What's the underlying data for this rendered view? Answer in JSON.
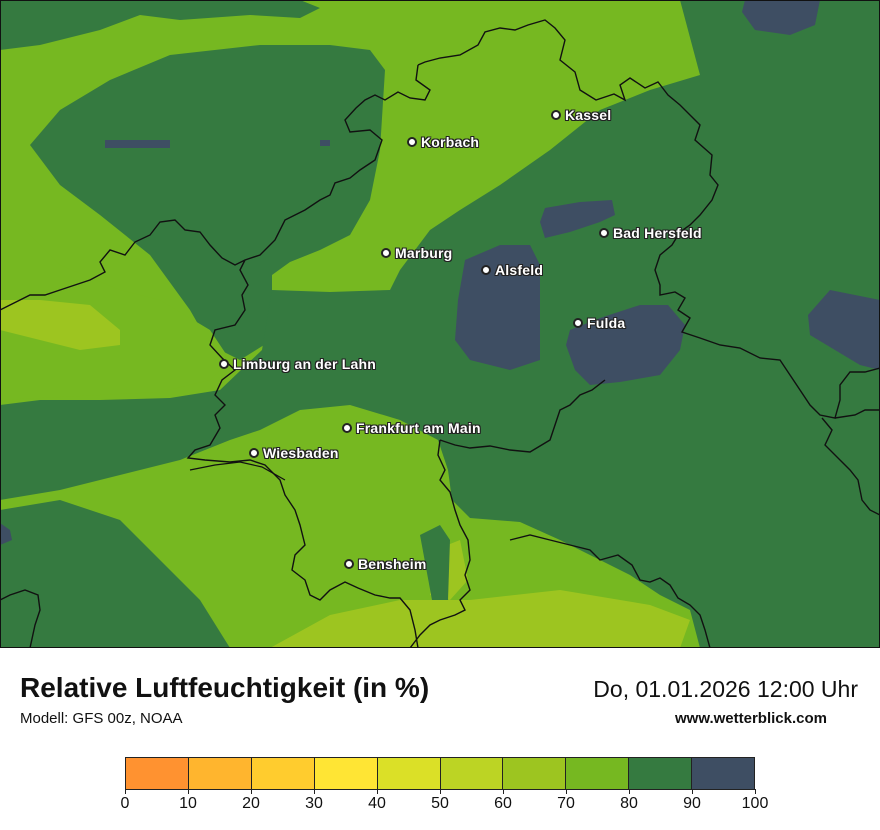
{
  "map": {
    "cities": [
      {
        "id": "kassel",
        "name": "Kassel"
      },
      {
        "id": "korbach",
        "name": "Korbach"
      },
      {
        "id": "bad-hersfeld",
        "name": "Bad Hersfeld"
      },
      {
        "id": "marburg",
        "name": "Marburg"
      },
      {
        "id": "alsfeld",
        "name": "Alsfeld"
      },
      {
        "id": "fulda",
        "name": "Fulda"
      },
      {
        "id": "limburg",
        "name": "Limburg an der Lahn"
      },
      {
        "id": "frankfurt",
        "name": "Frankfurt am Main"
      },
      {
        "id": "wiesbaden",
        "name": "Wiesbaden"
      },
      {
        "id": "bensheim",
        "name": "Bensheim"
      }
    ],
    "colors": {
      "band_70_80": "#76b821",
      "band_80_90": "#357a40",
      "band_90_100": "#3e4e63",
      "band_60_70": "#9dc520",
      "border": "#111111"
    }
  },
  "footer": {
    "title": "Relative Luftfeuchtigkeit (in %)",
    "model": "Modell: GFS 00z, NOAA",
    "datetime": "Do, 01.01.2026 12:00 Uhr",
    "site": "www.wetterblick.com"
  },
  "legend": {
    "colors": [
      "#ff9230",
      "#ffb52e",
      "#ffcc2e",
      "#ffe534",
      "#ffef2e",
      "#dbe027",
      "#bcd424",
      "#9dc520",
      "#76b821",
      "#357a40",
      "#3e4e63"
    ],
    "ticks": [
      "0",
      "10",
      "20",
      "30",
      "40",
      "50",
      "60",
      "70",
      "80",
      "90",
      "100"
    ]
  }
}
